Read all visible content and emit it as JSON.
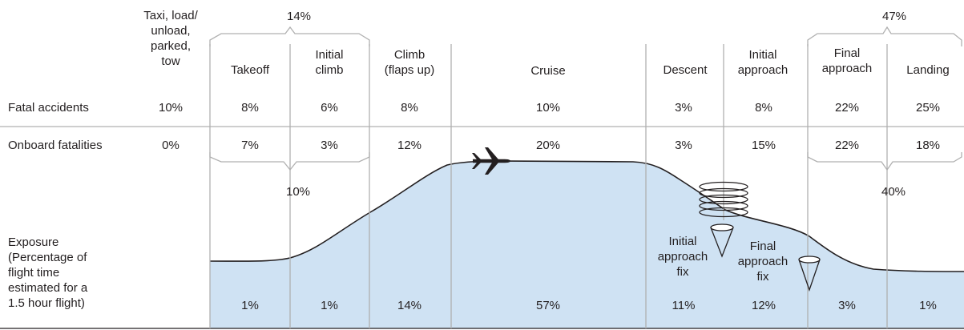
{
  "phases": [
    {
      "label": "Taxi, load/\nunload,\nparked,\ntow",
      "fatal_accidents": "10%",
      "onboard_fatalities": "0%",
      "exposure": ""
    },
    {
      "label": "Takeoff",
      "fatal_accidents": "8%",
      "onboard_fatalities": "7%",
      "exposure": "1%"
    },
    {
      "label": "Initial\nclimb",
      "fatal_accidents": "6%",
      "onboard_fatalities": "3%",
      "exposure": "1%"
    },
    {
      "label": "Climb\n(flaps up)",
      "fatal_accidents": "8%",
      "onboard_fatalities": "12%",
      "exposure": "14%"
    },
    {
      "label": "Cruise",
      "fatal_accidents": "10%",
      "onboard_fatalities": "20%",
      "exposure": "57%"
    },
    {
      "label": "Descent",
      "fatal_accidents": "3%",
      "onboard_fatalities": "3%",
      "exposure": "11%"
    },
    {
      "label": "Initial\napproach",
      "fatal_accidents": "8%",
      "onboard_fatalities": "15%",
      "exposure": "12%"
    },
    {
      "label": "Final\napproach",
      "fatal_accidents": "22%",
      "onboard_fatalities": "22%",
      "exposure": "3%"
    },
    {
      "label": "Landing",
      "fatal_accidents": "25%",
      "onboard_fatalities": "18%",
      "exposure": "1%"
    }
  ],
  "row_labels": {
    "fatal_accidents": "Fatal accidents",
    "onboard_fatalities": "Onboard fatalities",
    "exposure": "Exposure\n(Percentage of\nflight time\nestimated for a\n1.5 hour flight)"
  },
  "groups": {
    "takeoff_climb_accidents": "14%",
    "takeoff_climb_fatalities": "10%",
    "approach_landing_accidents": "47%",
    "approach_landing_fatalities": "40%"
  },
  "fixes": {
    "initial_approach_fix": "Initial\napproach\nfix",
    "final_approach_fix": "Final\napproach\nfix"
  },
  "colors": {
    "exposure_fill": "#cfe2f3",
    "profile_line": "#231f20",
    "divider": "#b0b0b0",
    "aircraft": "#231f20"
  },
  "icons": [
    "airplane-icon",
    "holding-pattern-icon",
    "initial-approach-fix-icon",
    "final-approach-fix-icon"
  ]
}
